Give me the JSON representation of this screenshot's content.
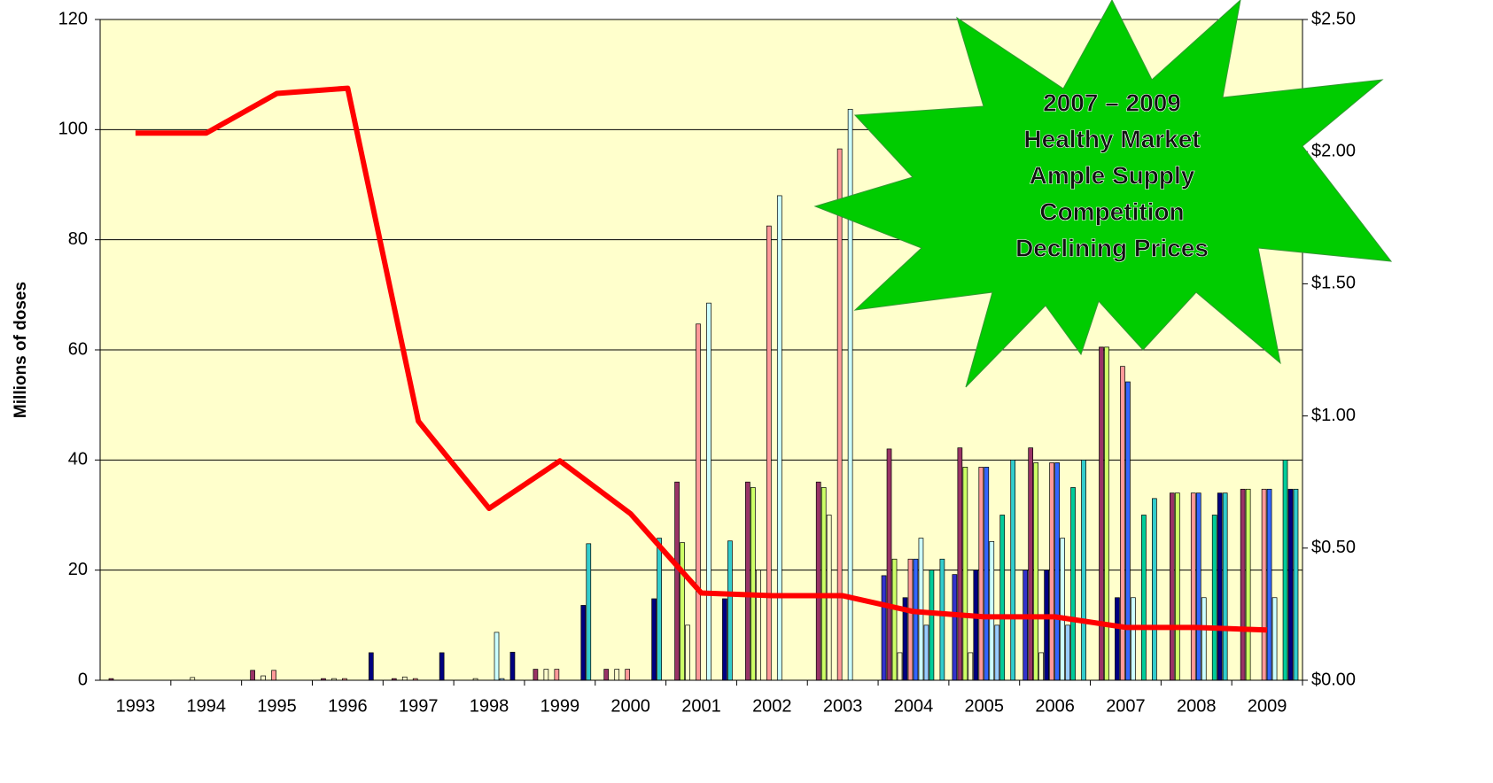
{
  "chart_data": {
    "type": "bar",
    "categories": [
      "1993",
      "1994",
      "1995",
      "1996",
      "1997",
      "1998",
      "1999",
      "2000",
      "2001",
      "2002",
      "2003",
      "2004",
      "2005",
      "2006",
      "2007",
      "2008",
      "2009"
    ],
    "ylabel": "Millions of doses",
    "ylim": [
      0,
      120
    ],
    "yticks": [
      0,
      20,
      40,
      60,
      80,
      100,
      120
    ],
    "y2lim": [
      0,
      2.5
    ],
    "y2ticks": [
      {
        "value": 0,
        "label": "$0.00"
      },
      {
        "value": 0.5,
        "label": "$0.50"
      },
      {
        "value": 1,
        "label": "$1.00"
      },
      {
        "value": 1.5,
        "label": "$1.50"
      },
      {
        "value": 2,
        "label": "$2.00"
      },
      {
        "value": 2.5,
        "label": "$2.50"
      }
    ],
    "grid": true,
    "series": [
      {
        "color": "#3333cc",
        "values": [
          null,
          null,
          null,
          null,
          null,
          null,
          null,
          null,
          null,
          null,
          null,
          19,
          19.2,
          20,
          null,
          null,
          null
        ]
      },
      {
        "color": "#993366",
        "values": [
          0.3,
          null,
          1.8,
          0.3,
          0.3,
          null,
          2,
          2,
          36,
          36,
          36,
          42,
          42.2,
          42.2,
          60.5,
          34,
          34.7
        ]
      },
      {
        "color": "#ccff66",
        "values": [
          null,
          null,
          null,
          null,
          null,
          null,
          null,
          null,
          25,
          35,
          35,
          22,
          38.7,
          39.5,
          60.5,
          34,
          34.7
        ]
      },
      {
        "color": "#ffffcc",
        "values": [
          null,
          0.5,
          0.8,
          0.3,
          0.6,
          0.3,
          2,
          2,
          10,
          20,
          30,
          5,
          5,
          5,
          null,
          null,
          null
        ]
      },
      {
        "color": "#000080",
        "values": [
          null,
          null,
          null,
          null,
          null,
          null,
          null,
          null,
          null,
          null,
          null,
          15,
          20,
          20,
          15,
          null,
          null
        ]
      },
      {
        "color": "#ff9999",
        "values": [
          null,
          null,
          1.8,
          0.3,
          0.3,
          null,
          2,
          2,
          64.7,
          82.5,
          96.5,
          22,
          38.7,
          39.5,
          57,
          34,
          34.7
        ]
      },
      {
        "color": "#3366ff",
        "values": [
          null,
          null,
          null,
          null,
          null,
          null,
          null,
          null,
          null,
          null,
          null,
          22,
          38.7,
          39.5,
          54.2,
          34,
          34.7
        ]
      },
      {
        "color": "#ccffff",
        "values": [
          null,
          null,
          null,
          null,
          null,
          8.7,
          null,
          null,
          68.5,
          88,
          103.7,
          25.8,
          25.2,
          25.8,
          15,
          15,
          15
        ]
      },
      {
        "color": "#99ccff",
        "values": [
          null,
          null,
          null,
          null,
          null,
          0.3,
          null,
          null,
          null,
          null,
          null,
          10,
          10,
          10,
          null,
          null,
          null
        ]
      },
      {
        "color": "#00cc99",
        "values": [
          null,
          null,
          null,
          null,
          null,
          null,
          null,
          null,
          null,
          null,
          null,
          20,
          30,
          35,
          30,
          30,
          40
        ]
      },
      {
        "color": "#000080",
        "values": [
          null,
          null,
          null,
          5,
          5,
          5.1,
          13.6,
          14.8,
          14.8,
          null,
          null,
          null,
          null,
          null,
          null,
          34,
          34.7
        ]
      },
      {
        "color": "#33cccc",
        "values": [
          null,
          null,
          null,
          null,
          null,
          null,
          24.8,
          25.8,
          25.3,
          null,
          null,
          22,
          40,
          40,
          33,
          34,
          34.7
        ]
      }
    ],
    "line": {
      "type": "line",
      "color": "#ff0000",
      "axis": "y2",
      "values": [
        2.07,
        2.07,
        2.22,
        2.24,
        0.98,
        0.65,
        0.83,
        0.63,
        0.33,
        0.32,
        0.32,
        0.26,
        0.24,
        0.24,
        0.2,
        0.2,
        0.19
      ]
    },
    "annotation": [
      "2007 – 2009",
      "Healthy Market",
      "Ample Supply",
      "Competition",
      "Declining Prices"
    ]
  }
}
